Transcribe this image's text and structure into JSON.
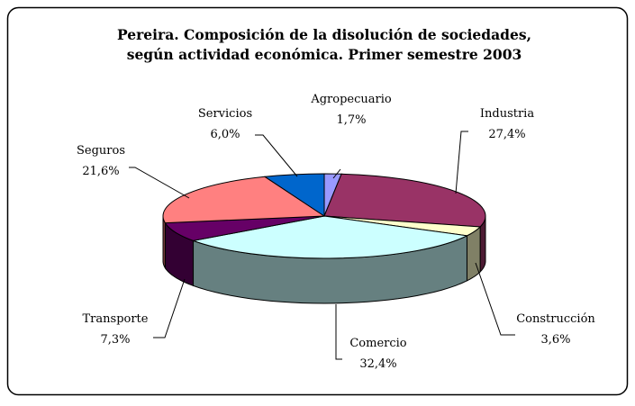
{
  "chart_data": {
    "type": "pie3d",
    "title": [
      "Pereira. Composición de la disolución de sociedades,",
      "según actividad económica. Primer semestre 2003"
    ],
    "categories": [
      "Agropecuario",
      "Industria",
      "Construcción",
      "Comercio",
      "Transporte",
      "Seguros",
      "Servicios"
    ],
    "values": [
      1.7,
      27.4,
      3.6,
      32.4,
      7.3,
      21.6,
      6.0
    ],
    "value_labels": [
      "1,7%",
      "27,4%",
      "3,6%",
      "32,4%",
      "7,3%",
      "21,6%",
      "6,0%"
    ],
    "colors": [
      "#9999ff",
      "#993366",
      "#ffffcc",
      "#ccffff",
      "#660066",
      "#ff8080",
      "#0066cc"
    ]
  }
}
